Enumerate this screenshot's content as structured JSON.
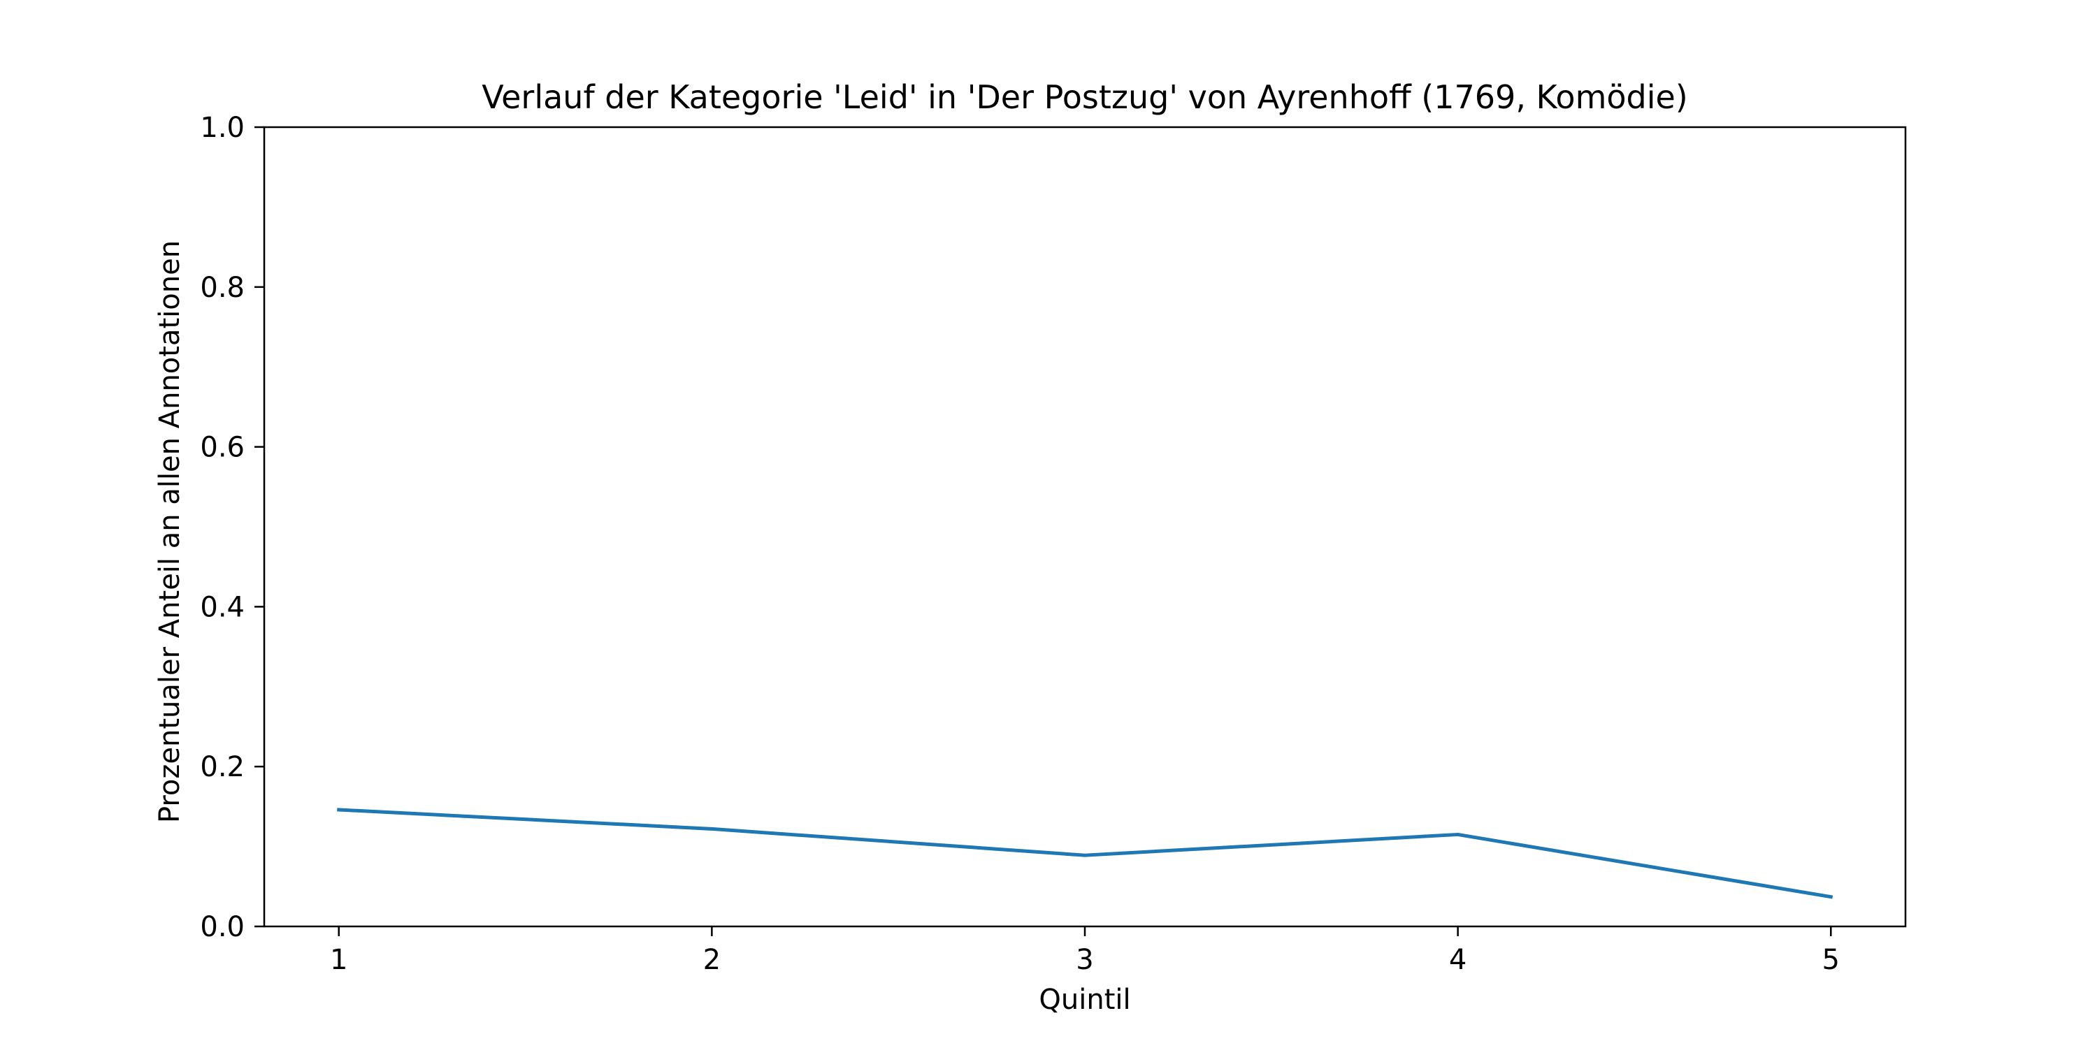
{
  "chart_data": {
    "type": "line",
    "title": "Verlauf der Kategorie 'Leid' in 'Der Postzug' von Ayrenhoff (1769, Komödie)",
    "xlabel": "Quintil",
    "ylabel": "Prozentualer Anteil an allen Annotationen",
    "x": [
      1,
      2,
      3,
      4,
      5
    ],
    "x_tick_labels": [
      "1",
      "2",
      "3",
      "4",
      "5"
    ],
    "y_ticks": [
      0.0,
      0.2,
      0.4,
      0.6,
      0.8,
      1.0
    ],
    "y_tick_labels": [
      "0.0",
      "0.2",
      "0.4",
      "0.6",
      "0.8",
      "1.0"
    ],
    "xlim": [
      0.8,
      5.2
    ],
    "ylim": [
      0.0,
      1.0
    ],
    "grid": false,
    "legend": "none",
    "series": [
      {
        "values": [
          0.146,
          0.122,
          0.089,
          0.115,
          0.037
        ],
        "color": "#1f77b4"
      }
    ]
  }
}
